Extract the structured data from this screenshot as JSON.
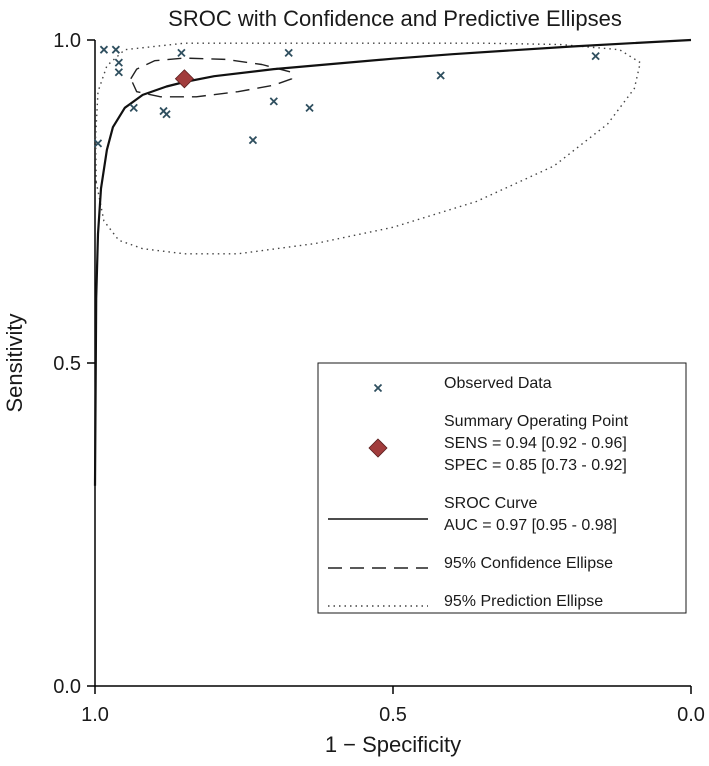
{
  "chart_data": {
    "type": "scatter",
    "title": "SROC with Confidence and Predictive Ellipses",
    "xlabel": "1 − Specificity",
    "ylabel": "Sensitivity",
    "x_axis": {
      "range": [
        1.0,
        0.0
      ],
      "reversed": true,
      "ticks": [
        "1.0",
        "0.5",
        "0.0"
      ],
      "tick_values": [
        1.0,
        0.5,
        0.0
      ]
    },
    "y_axis": {
      "range": [
        0.0,
        1.0
      ],
      "ticks": [
        "0.0",
        "0.5",
        "1.0"
      ],
      "tick_values": [
        0.0,
        0.5,
        1.0
      ]
    },
    "grid": false,
    "legend_position": "bottom-right",
    "series": [
      {
        "name": "Observed Data",
        "kind": "points",
        "marker": "x",
        "color": "#2f4f5f",
        "points": [
          {
            "x": 0.985,
            "y": 0.985
          },
          {
            "x": 0.965,
            "y": 0.985
          },
          {
            "x": 0.96,
            "y": 0.965
          },
          {
            "x": 0.96,
            "y": 0.95
          },
          {
            "x": 0.935,
            "y": 0.895
          },
          {
            "x": 0.885,
            "y": 0.89
          },
          {
            "x": 0.88,
            "y": 0.885
          },
          {
            "x": 0.855,
            "y": 0.98
          },
          {
            "x": 0.7,
            "y": 0.905
          },
          {
            "x": 0.675,
            "y": 0.98
          },
          {
            "x": 0.64,
            "y": 0.895
          },
          {
            "x": 0.735,
            "y": 0.845
          },
          {
            "x": 0.42,
            "y": 0.945
          },
          {
            "x": 0.16,
            "y": 0.975
          },
          {
            "x": 0.995,
            "y": 0.84
          }
        ]
      },
      {
        "name": "Summary Operating Point",
        "kind": "summary",
        "marker": "diamond",
        "color": "#a13c3c",
        "points": [
          {
            "x": 0.85,
            "y": 0.94
          }
        ],
        "labels": [
          "SENS = 0.94 [0.92 - 0.96]",
          "SPEC = 0.85 [0.73 - 0.92]"
        ]
      },
      {
        "name": "SROC Curve",
        "kind": "curve",
        "style": "solid",
        "color": "#111111",
        "labels": [
          "AUC = 0.97 [0.95 - 0.98]"
        ],
        "points": [
          {
            "x": 1.0,
            "y": 0.31
          },
          {
            "x": 0.998,
            "y": 0.6
          },
          {
            "x": 0.995,
            "y": 0.7
          },
          {
            "x": 0.99,
            "y": 0.77
          },
          {
            "x": 0.98,
            "y": 0.83
          },
          {
            "x": 0.97,
            "y": 0.865
          },
          {
            "x": 0.95,
            "y": 0.895
          },
          {
            "x": 0.92,
            "y": 0.915
          },
          {
            "x": 0.88,
            "y": 0.928
          },
          {
            "x": 0.85,
            "y": 0.935
          },
          {
            "x": 0.8,
            "y": 0.944
          },
          {
            "x": 0.7,
            "y": 0.955
          },
          {
            "x": 0.6,
            "y": 0.963
          },
          {
            "x": 0.5,
            "y": 0.971
          },
          {
            "x": 0.4,
            "y": 0.978
          },
          {
            "x": 0.3,
            "y": 0.984
          },
          {
            "x": 0.2,
            "y": 0.99
          },
          {
            "x": 0.1,
            "y": 0.995
          },
          {
            "x": 0.0,
            "y": 1.0
          }
        ]
      },
      {
        "name": "95% Confidence Ellipse",
        "kind": "ellipse",
        "style": "dashed",
        "color": "#222222",
        "points": [
          {
            "x": 0.94,
            "y": 0.94
          },
          {
            "x": 0.93,
            "y": 0.955
          },
          {
            "x": 0.9,
            "y": 0.968
          },
          {
            "x": 0.85,
            "y": 0.972
          },
          {
            "x": 0.78,
            "y": 0.97
          },
          {
            "x": 0.72,
            "y": 0.962
          },
          {
            "x": 0.67,
            "y": 0.95
          },
          {
            "x": 0.67,
            "y": 0.94
          },
          {
            "x": 0.7,
            "y": 0.93
          },
          {
            "x": 0.76,
            "y": 0.92
          },
          {
            "x": 0.83,
            "y": 0.912
          },
          {
            "x": 0.89,
            "y": 0.912
          },
          {
            "x": 0.93,
            "y": 0.92
          },
          {
            "x": 0.94,
            "y": 0.94
          }
        ]
      },
      {
        "name": "95% Prediction Ellipse",
        "kind": "ellipse",
        "style": "dotted",
        "color": "#444444",
        "points": [
          {
            "x": 0.998,
            "y": 0.78
          },
          {
            "x": 0.999,
            "y": 0.85
          },
          {
            "x": 0.995,
            "y": 0.92
          },
          {
            "x": 0.98,
            "y": 0.96
          },
          {
            "x": 0.95,
            "y": 0.985
          },
          {
            "x": 0.85,
            "y": 0.995
          },
          {
            "x": 0.7,
            "y": 0.995
          },
          {
            "x": 0.5,
            "y": 0.995
          },
          {
            "x": 0.35,
            "y": 0.995
          },
          {
            "x": 0.22,
            "y": 0.993
          },
          {
            "x": 0.12,
            "y": 0.985
          },
          {
            "x": 0.085,
            "y": 0.965
          },
          {
            "x": 0.095,
            "y": 0.925
          },
          {
            "x": 0.14,
            "y": 0.87
          },
          {
            "x": 0.23,
            "y": 0.805
          },
          {
            "x": 0.36,
            "y": 0.75
          },
          {
            "x": 0.5,
            "y": 0.71
          },
          {
            "x": 0.63,
            "y": 0.685
          },
          {
            "x": 0.76,
            "y": 0.669
          },
          {
            "x": 0.85,
            "y": 0.669
          },
          {
            "x": 0.92,
            "y": 0.677
          },
          {
            "x": 0.96,
            "y": 0.69
          },
          {
            "x": 0.985,
            "y": 0.72
          },
          {
            "x": 0.998,
            "y": 0.78
          }
        ]
      }
    ]
  }
}
